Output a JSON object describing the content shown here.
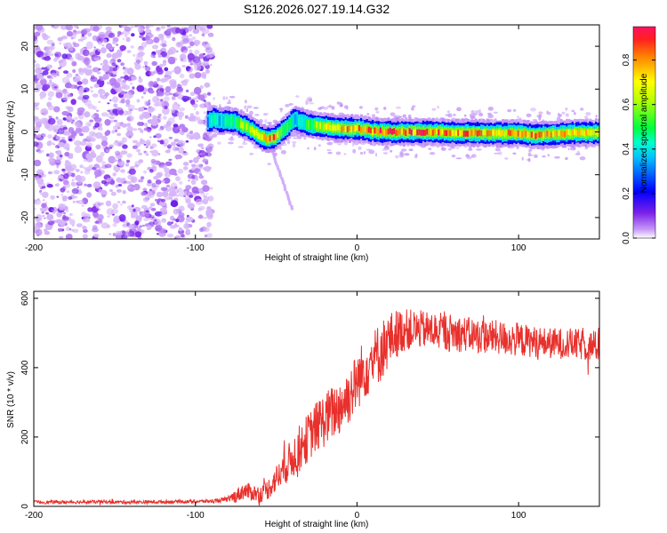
{
  "title": "S126.2026.027.19.14.G32",
  "chart_data": [
    {
      "type": "heatmap",
      "name": "spectrogram",
      "xlabel": "Height of straight line (km)",
      "ylabel": "Frequency (Hz)",
      "xlim": [
        -200,
        150
      ],
      "ylim": [
        -25,
        25
      ],
      "xticks": [
        -200,
        -100,
        0,
        100
      ],
      "yticks": [
        -20,
        -10,
        0,
        10,
        20
      ],
      "colorbar": {
        "label": "Normalized spectral amplitude",
        "range": [
          0,
          0.95
        ],
        "ticks": [
          0.0,
          0.2,
          0.4,
          0.6,
          0.8
        ],
        "tick_labels": [
          "0.0",
          "0.2",
          "0.4",
          "0.6",
          "0.8"
        ]
      },
      "noise_region_x": [
        -200,
        -90
      ],
      "ridge": {
        "x": [
          -92,
          -88,
          -85,
          -80,
          -75,
          -70,
          -65,
          -60,
          -57,
          -55,
          -52,
          -50,
          -48,
          -45,
          -42,
          -40,
          -38,
          -36,
          -33,
          -30,
          -25,
          -20,
          -15,
          -10,
          -5,
          0,
          5,
          10,
          15,
          20,
          30,
          40,
          50,
          60,
          70,
          80,
          90,
          100,
          110,
          120,
          130,
          140,
          150
        ],
        "freq": [
          2.5,
          3,
          2.5,
          2.6,
          2.4,
          1.5,
          0.5,
          -1.0,
          -1.5,
          -1.6,
          -1.5,
          -1.2,
          -0.5,
          0.5,
          1.5,
          2.5,
          3.0,
          2.6,
          2.2,
          1.8,
          1.5,
          1.2,
          1.0,
          0.8,
          0.8,
          0.8,
          0.6,
          0.2,
          0.1,
          0.0,
          0.0,
          0.0,
          0.0,
          -0.2,
          -0.2,
          -0.3,
          -0.3,
          -0.3,
          -0.8,
          -0.5,
          -0.3,
          -0.2,
          -0.2
        ],
        "amplitude": [
          0.35,
          0.45,
          0.4,
          0.45,
          0.5,
          0.65,
          0.7,
          0.75,
          0.85,
          0.9,
          0.9,
          0.85,
          0.7,
          0.55,
          0.5,
          0.45,
          0.4,
          0.45,
          0.45,
          0.55,
          0.6,
          0.7,
          0.75,
          0.8,
          0.85,
          0.85,
          0.85,
          0.9,
          0.9,
          0.9,
          0.9,
          0.9,
          0.85,
          0.85,
          0.85,
          0.8,
          0.8,
          0.85,
          0.85,
          0.8,
          0.8,
          0.75,
          0.7
        ]
      }
    },
    {
      "type": "line",
      "name": "snr",
      "xlabel": "Height of straight line (km)",
      "ylabel": "SNR (10 * v/v)",
      "xlim": [
        -200,
        150
      ],
      "ylim": [
        0,
        620
      ],
      "xticks": [
        -200,
        -100,
        0,
        100
      ],
      "yticks": [
        0,
        200,
        400,
        600
      ],
      "series": [
        {
          "name": "SNR",
          "color": "#e8302c",
          "x": [
            -200,
            -180,
            -160,
            -140,
            -120,
            -100,
            -90,
            -80,
            -75,
            -70,
            -65,
            -60,
            -55,
            -50,
            -45,
            -40,
            -35,
            -30,
            -25,
            -20,
            -15,
            -10,
            -5,
            0,
            5,
            10,
            15,
            20,
            25,
            30,
            40,
            50,
            60,
            70,
            80,
            90,
            100,
            110,
            120,
            130,
            140,
            150
          ],
          "values": [
            12,
            12,
            13,
            12,
            13,
            14,
            15,
            20,
            30,
            45,
            40,
            35,
            50,
            80,
            110,
            140,
            170,
            200,
            230,
            250,
            270,
            290,
            320,
            360,
            400,
            420,
            450,
            480,
            500,
            510,
            510,
            505,
            500,
            495,
            490,
            485,
            480,
            475,
            470,
            470,
            465,
            460
          ],
          "noise_amplitude": [
            5,
            5,
            5,
            5,
            5,
            5,
            5,
            8,
            20,
            25,
            25,
            25,
            30,
            40,
            50,
            60,
            70,
            70,
            75,
            80,
            80,
            85,
            85,
            85,
            90,
            90,
            90,
            80,
            70,
            60,
            55,
            55,
            55,
            50,
            50,
            50,
            50,
            45,
            45,
            45,
            45,
            45
          ]
        }
      ]
    }
  ]
}
